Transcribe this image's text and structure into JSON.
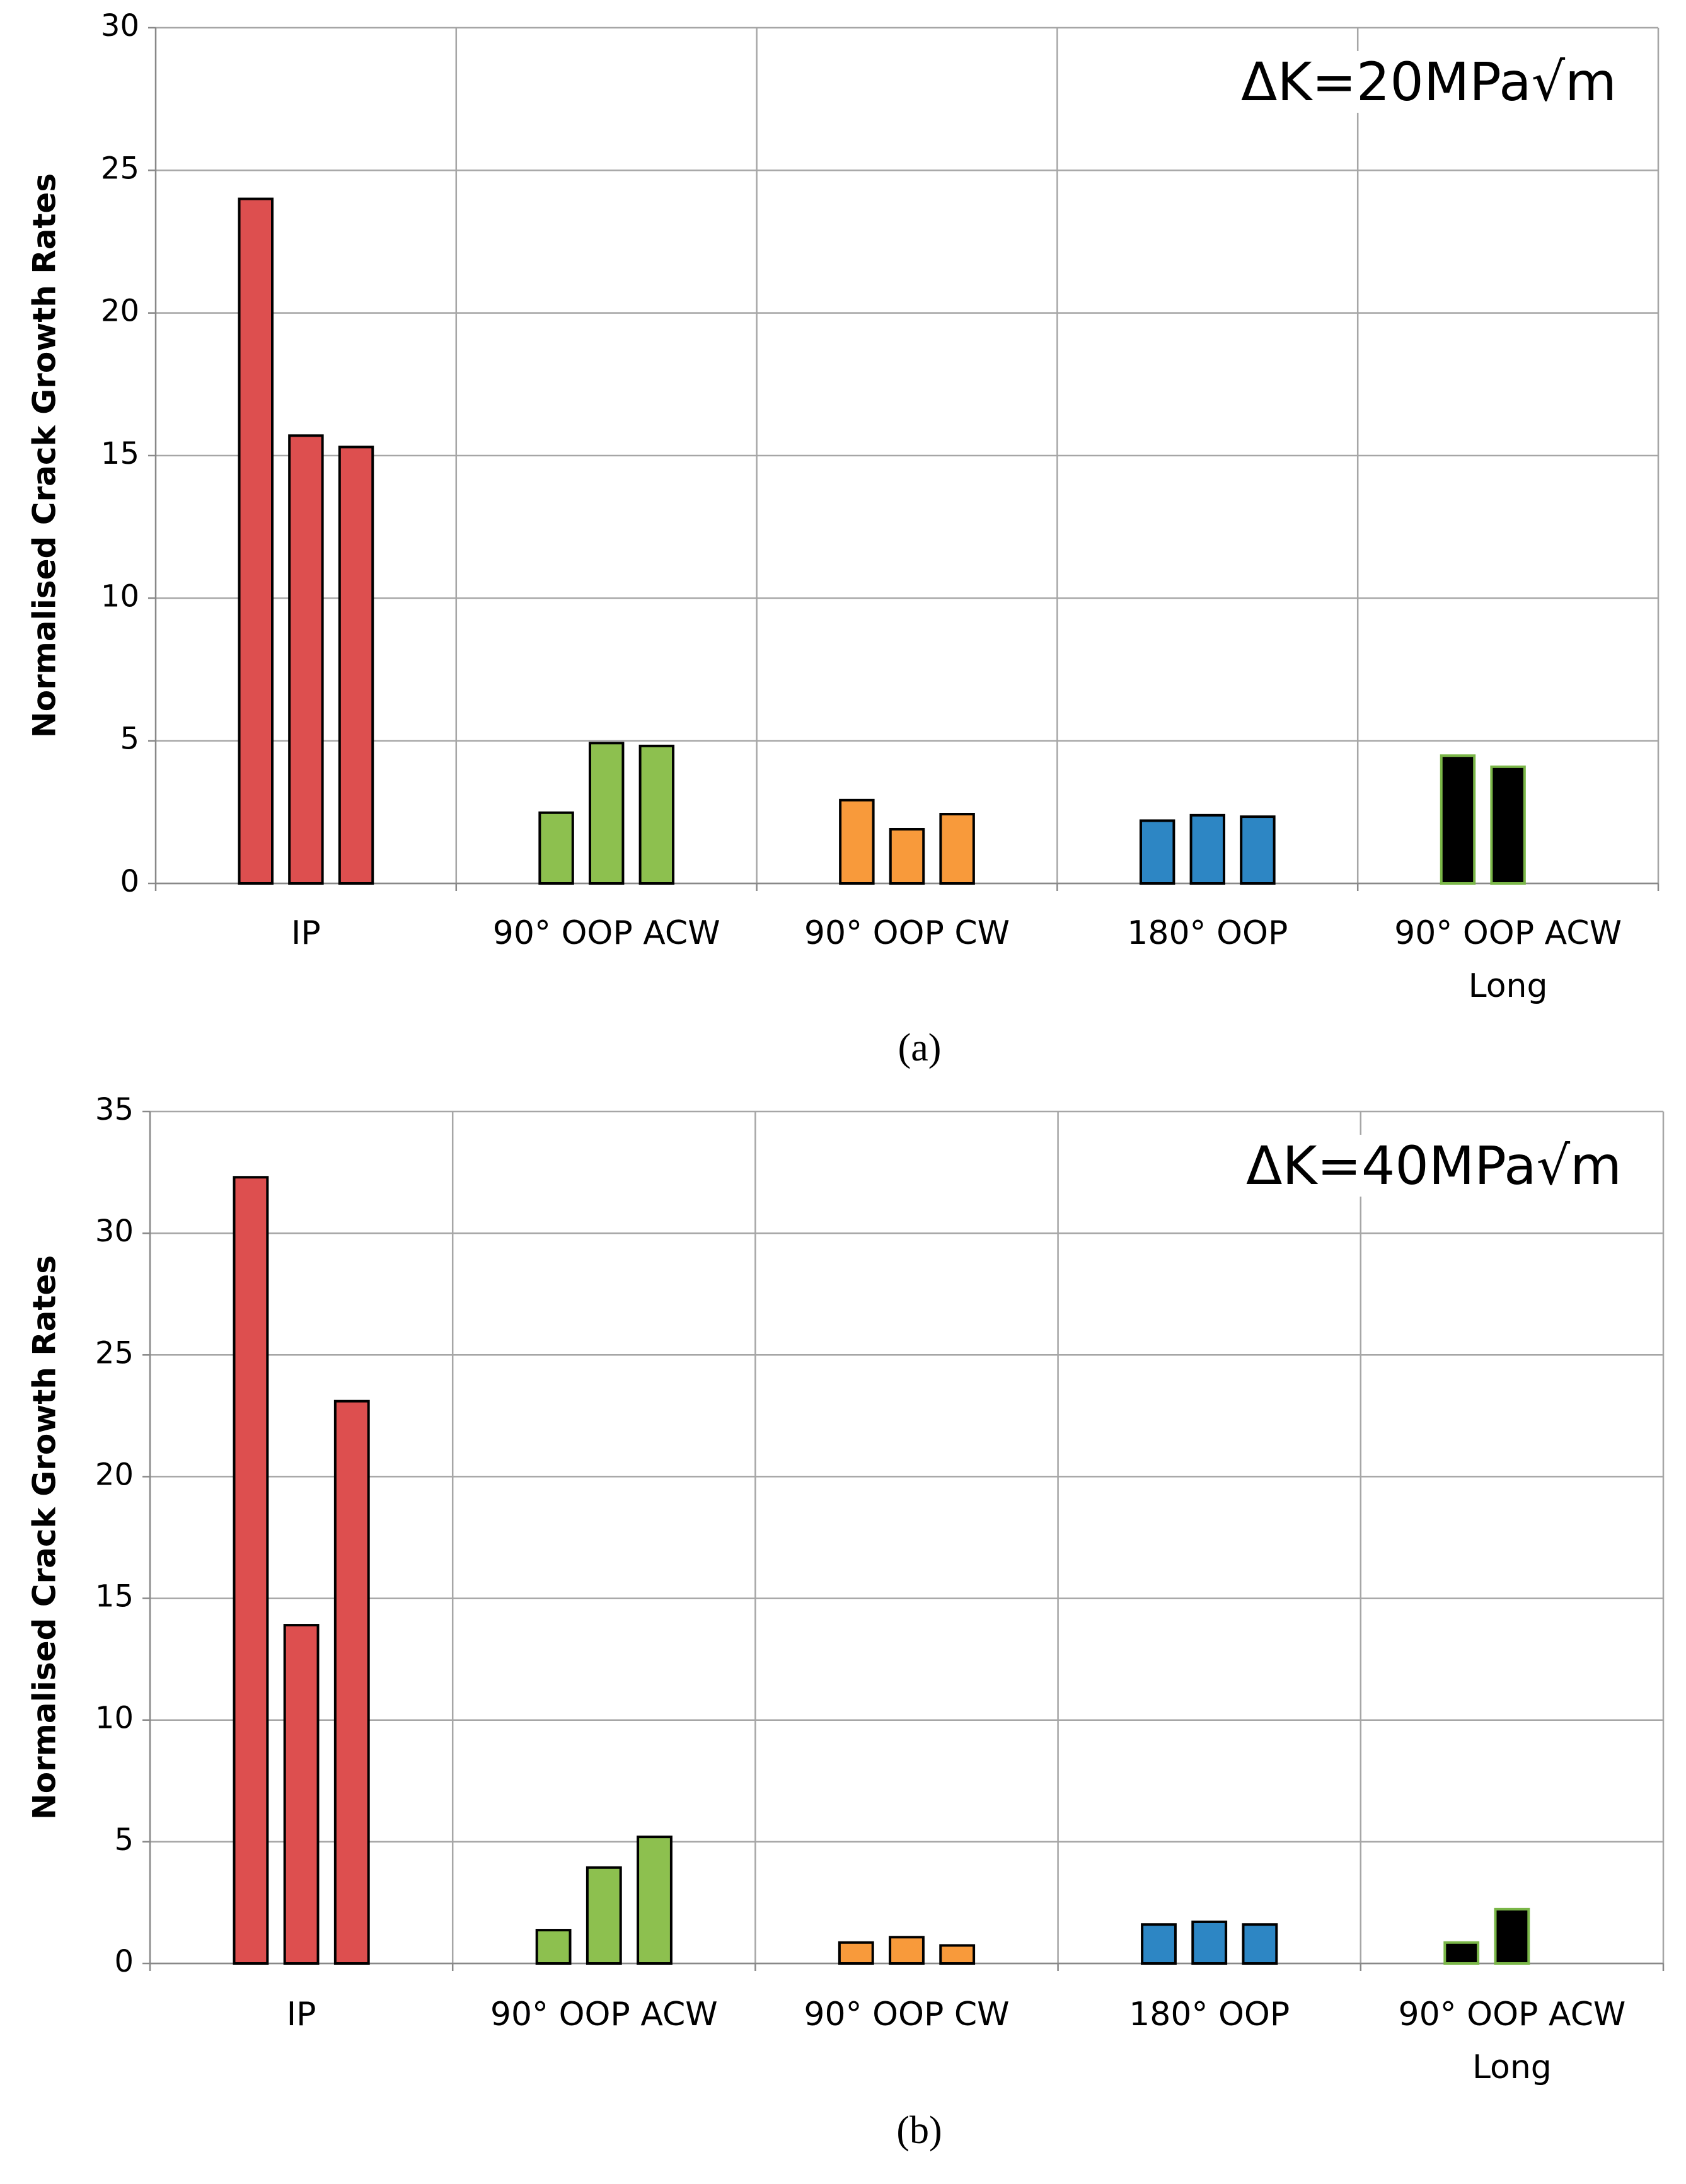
{
  "chart_data": [
    {
      "type": "grouped-bar",
      "y_label": "Normalised Crack Growth Rates",
      "annotation": "ΔK=20MPa√m",
      "caption": "(a)",
      "ylim": [
        0,
        30
      ],
      "yticks": [
        0,
        5,
        10,
        15,
        20,
        25,
        30
      ],
      "grid": true,
      "groups": [
        {
          "label": "IP",
          "color": "#dd4f4f",
          "edge_color": "#000000",
          "values": [
            24,
            15.7,
            15.3
          ]
        },
        {
          "label": "90° OOP ACW",
          "color": "#8dc04f",
          "edge_color": "#000000",
          "values": [
            2.48,
            4.92,
            4.82
          ]
        },
        {
          "label": "90° OOP CW",
          "color": "#f89a3b",
          "edge_color": "#000000",
          "values": [
            2.92,
            1.9,
            2.43
          ]
        },
        {
          "label": "180° OOP",
          "color": "#2d86c4",
          "edge_color": "#000000",
          "values": [
            2.2,
            2.39,
            2.34
          ]
        },
        {
          "label": "90° OOP ACW Long",
          "color": "#000000",
          "edge_color": "#7ab648",
          "values": [
            4.48,
            4.09
          ]
        }
      ]
    },
    {
      "type": "grouped-bar",
      "y_label": "Normalised Crack Growth Rates",
      "annotation": "ΔK=40MPa√m",
      "caption": "(b)",
      "ylim": [
        0,
        35
      ],
      "yticks": [
        0,
        5,
        10,
        15,
        20,
        25,
        30,
        35
      ],
      "grid": true,
      "groups": [
        {
          "label": "IP",
          "color": "#dd4f4f",
          "edge_color": "#000000",
          "values": [
            32.3,
            13.9,
            23.1
          ]
        },
        {
          "label": "90° OOP ACW",
          "color": "#8dc04f",
          "edge_color": "#000000",
          "values": [
            1.37,
            3.94,
            5.2
          ]
        },
        {
          "label": "90° OOP CW",
          "color": "#f89a3b",
          "edge_color": "#000000",
          "values": [
            0.86,
            1.08,
            0.74
          ]
        },
        {
          "label": "180° OOP",
          "color": "#2d86c4",
          "edge_color": "#000000",
          "values": [
            1.6,
            1.71,
            1.6
          ]
        },
        {
          "label": "90° OOP ACW Long",
          "color": "#000000",
          "edge_color": "#7ab648",
          "values": [
            0.86,
            2.23
          ]
        }
      ]
    }
  ]
}
